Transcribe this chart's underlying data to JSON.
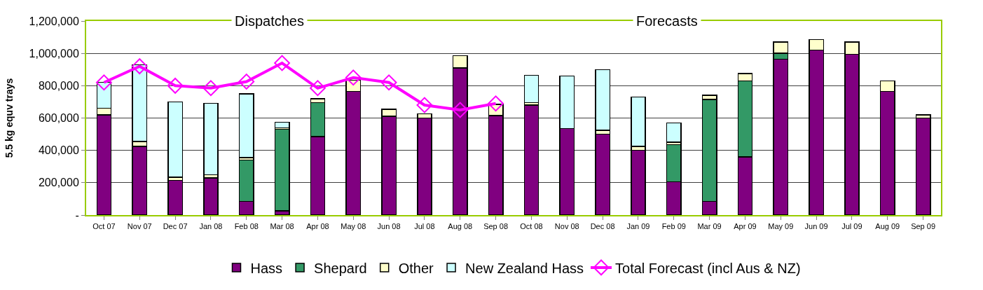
{
  "chart_data": {
    "type": "bar",
    "stacked": true,
    "ylabel": "5.5 kg equv trays",
    "categories": [
      "Oct 07",
      "Nov 07",
      "Dec 07",
      "Jan 08",
      "Feb 08",
      "Mar 08",
      "Apr 08",
      "May 08",
      "Jun 08",
      "Jul 08",
      "Aug 08",
      "Sep 08",
      "Oct 08",
      "Nov 08",
      "Dec 08",
      "Jan 09",
      "Feb 09",
      "Mar 09",
      "Apr 09",
      "May 09",
      "Jun 09",
      "Jul 09",
      "Aug 09",
      "Sep 09"
    ],
    "series": [
      {
        "name": "Hass",
        "color": "#800080",
        "values": [
          620000,
          425000,
          215000,
          230000,
          85000,
          25000,
          485000,
          765000,
          610000,
          600000,
          910000,
          615000,
          680000,
          535000,
          500000,
          400000,
          205000,
          85000,
          360000,
          965000,
          1020000,
          995000,
          765000,
          600000
        ]
      },
      {
        "name": "Shepard",
        "color": "#339966",
        "values": [
          null,
          null,
          null,
          null,
          255000,
          505000,
          210000,
          null,
          null,
          null,
          null,
          null,
          null,
          null,
          null,
          null,
          230000,
          630000,
          470000,
          35000,
          null,
          null,
          null,
          null
        ]
      },
      {
        "name": "Other",
        "color": "#ffffcc",
        "values": [
          40000,
          30000,
          20000,
          20000,
          15000,
          10000,
          25000,
          70000,
          45000,
          25000,
          75000,
          70000,
          15000,
          null,
          25000,
          25000,
          15000,
          25000,
          45000,
          70000,
          65000,
          75000,
          65000,
          20000
        ]
      },
      {
        "name": "New Zealand Hass",
        "color": "#ccffff",
        "values": [
          160000,
          475000,
          465000,
          440000,
          395000,
          35000,
          null,
          null,
          null,
          null,
          null,
          null,
          170000,
          325000,
          375000,
          305000,
          120000,
          null,
          null,
          null,
          null,
          null,
          null,
          null
        ]
      },
      {
        "name": "Total Forecast (incl Aus & NZ)",
        "type": "line",
        "color": "#ff00ff",
        "marker": "diamond",
        "values": [
          820000,
          920000,
          800000,
          785000,
          825000,
          940000,
          785000,
          850000,
          820000,
          680000,
          650000,
          690000,
          null,
          null,
          null,
          null,
          null,
          null,
          null,
          null,
          null,
          null,
          null,
          null
        ]
      }
    ],
    "ylim": [
      0,
      1200000
    ],
    "yticks": [
      {
        "value": 0,
        "label": "-"
      },
      {
        "value": 200000,
        "label": "200,000"
      },
      {
        "value": 400000,
        "label": "400,000"
      },
      {
        "value": 600000,
        "label": "600,000"
      },
      {
        "value": 800000,
        "label": "800,000"
      },
      {
        "value": 1000000,
        "label": "1,000,000"
      },
      {
        "value": 1200000,
        "label": "1,200,000"
      }
    ],
    "grid": "y",
    "legend": "bottom",
    "annotations": [
      "Dispatches",
      "Forecasts"
    ]
  }
}
